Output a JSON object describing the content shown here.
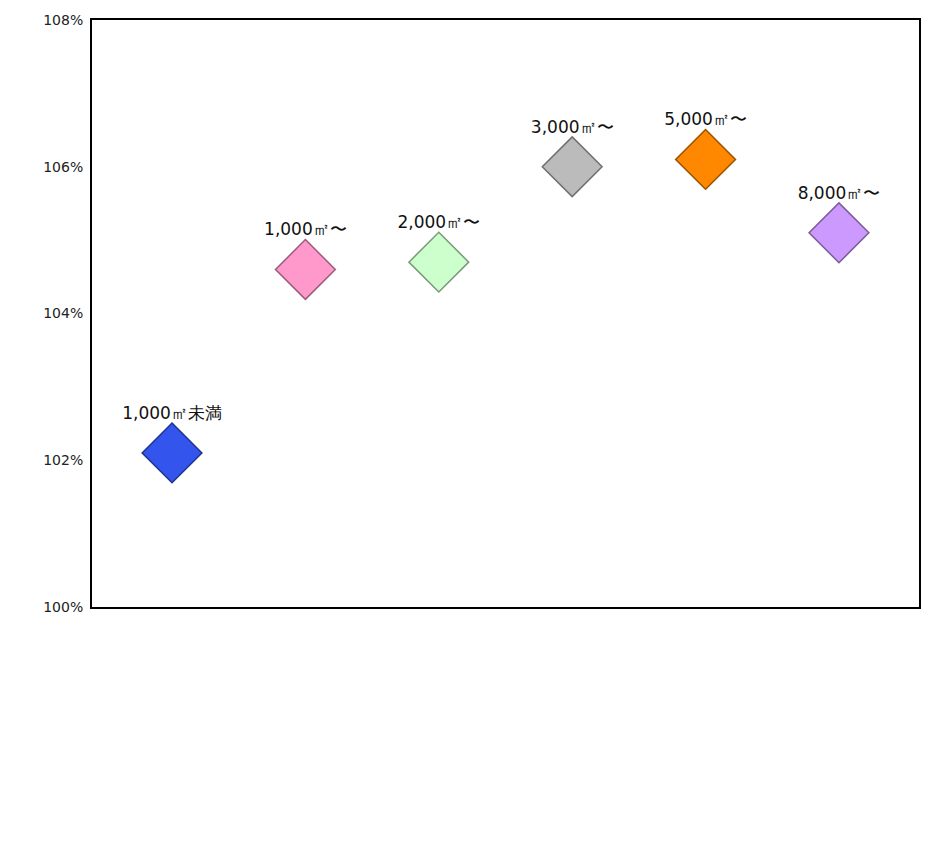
{
  "chart_data": {
    "type": "scatter",
    "categories": [
      "1,000㎡未満",
      "1,000㎡〜",
      "2,000㎡〜",
      "3,000㎡〜",
      "5,000㎡〜",
      "8,000㎡〜"
    ],
    "values": [
      102.1,
      104.6,
      104.7,
      106.0,
      106.1,
      105.1
    ],
    "colors": [
      "#3355ee",
      "#ff99cc",
      "#ccffcc",
      "#bbbbbb",
      "#ff8800",
      "#cc99ff"
    ],
    "marker": "diamond",
    "ylim": [
      100,
      108
    ],
    "yticks": [
      {
        "value": 100,
        "label": "100%"
      },
      {
        "value": 102,
        "label": "102%"
      },
      {
        "value": 104,
        "label": "104%"
      },
      {
        "value": 106,
        "label": "106%"
      },
      {
        "value": 108,
        "label": "108%"
      }
    ],
    "grid": false,
    "tick_labels": "y"
  }
}
